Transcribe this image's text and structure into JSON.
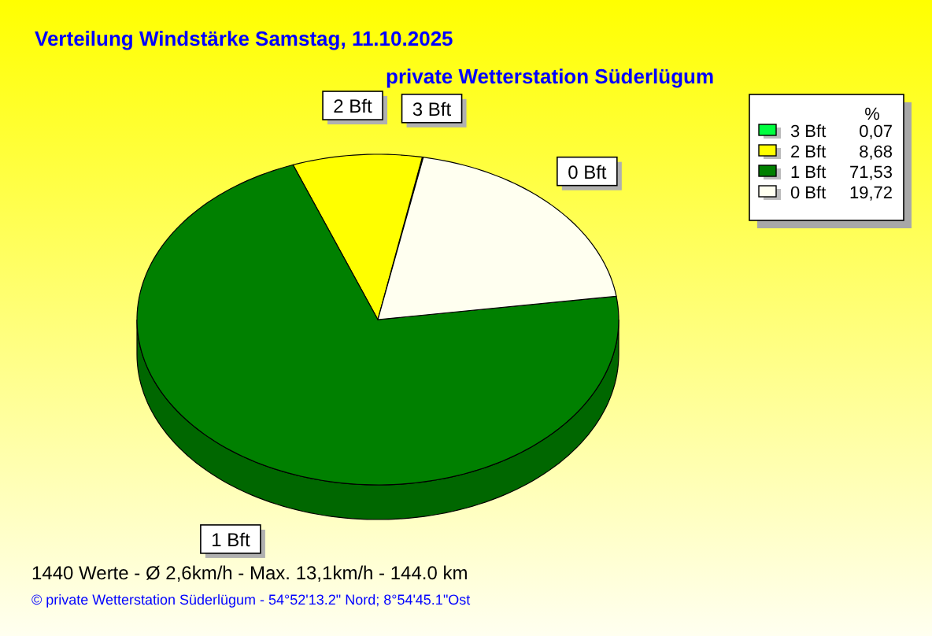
{
  "chart_data": {
    "type": "pie",
    "title": "Verteilung Windstärke  Samstag, 11.10.2025",
    "subtitle": "private Wetterstation Süderlügum",
    "categories": [
      "3 Bft",
      "2 Bft",
      "1 Bft",
      "0 Bft"
    ],
    "values": [
      0.07,
      8.68,
      71.53,
      19.72
    ],
    "colors": [
      "#00ff40",
      "#ffff00",
      "#008000",
      "#fffff0"
    ],
    "value_labels": [
      "0,07",
      "8,68",
      "71,53",
      "19,72"
    ],
    "legend": "top right",
    "legend_title": "%",
    "annotations": [
      "1440 Werte   -   Ø 2,6km/h  -  Max. 13,1km/h   -   144.0 km",
      "© private Wetterstation Süderlügum   -   54°52'13.2\" Nord; 8°54'45.1\"Ost"
    ]
  }
}
